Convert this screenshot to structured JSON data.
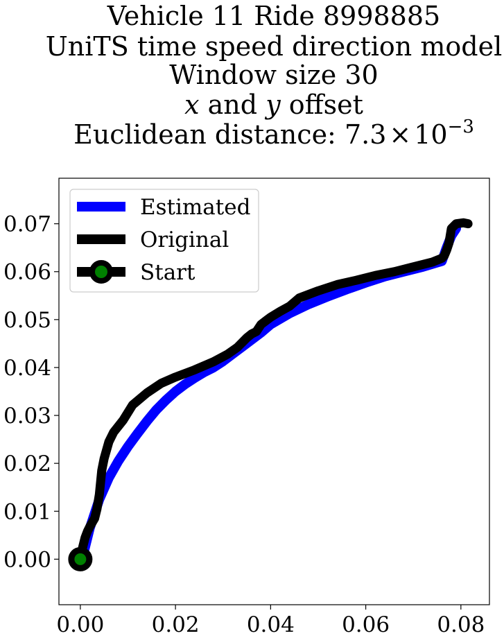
{
  "chart_data": {
    "type": "line",
    "title_lines": [
      "Vehicle 11 Ride 8998885",
      "UniTS time speed direction model",
      "Window size 30"
    ],
    "title_offset": {
      "x": "x",
      "and": "and",
      "y": "y",
      "rest": "offset"
    },
    "title_distance": {
      "prefix": "Euclidean distance: ",
      "mantissa": "7.3",
      "times": "×",
      "base": "10",
      "exponent": "−3"
    },
    "xlabel": "",
    "ylabel": "",
    "xlim": [
      -0.0045,
      0.086
    ],
    "ylim": [
      -0.0095,
      0.0795
    ],
    "xticks": [
      0.0,
      0.02,
      0.04,
      0.06,
      0.08
    ],
    "xtick_labels": [
      "0.00",
      "0.02",
      "0.04",
      "0.06",
      "0.08"
    ],
    "yticks": [
      0.0,
      0.01,
      0.02,
      0.03,
      0.04,
      0.05,
      0.06,
      0.07
    ],
    "ytick_labels": [
      "0.00",
      "0.01",
      "0.02",
      "0.03",
      "0.04",
      "0.05",
      "0.06",
      "0.07"
    ],
    "grid": false,
    "legend_position": "top-left",
    "legend": [
      "Estimated",
      "Original",
      "Start"
    ],
    "colors": {
      "estimated": "#0000ff",
      "original": "#000000",
      "start_fill": "#008000",
      "start_edge": "#000000"
    },
    "series": [
      {
        "name": "Estimated",
        "x": [
          0.0005,
          0.002,
          0.004,
          0.006,
          0.008,
          0.01,
          0.012,
          0.014,
          0.016,
          0.018,
          0.02,
          0.022,
          0.024,
          0.026,
          0.028,
          0.03,
          0.032,
          0.034,
          0.036,
          0.038,
          0.04,
          0.044,
          0.048,
          0.052,
          0.056,
          0.06,
          0.064,
          0.068,
          0.072,
          0.076,
          0.077,
          0.078,
          0.079
        ],
        "y": [
          0.0005,
          0.0065,
          0.0125,
          0.017,
          0.0205,
          0.0235,
          0.0262,
          0.0288,
          0.0312,
          0.0332,
          0.035,
          0.0365,
          0.0378,
          0.039,
          0.04,
          0.0413,
          0.0428,
          0.0443,
          0.0458,
          0.0473,
          0.049,
          0.0513,
          0.0532,
          0.0548,
          0.0563,
          0.0577,
          0.059,
          0.06,
          0.061,
          0.0622,
          0.065,
          0.0675,
          0.069
        ]
      },
      {
        "name": "Original",
        "x": [
          0.0,
          0.0005,
          0.001,
          0.0015,
          0.002,
          0.003,
          0.0035,
          0.004,
          0.0045,
          0.005,
          0.006,
          0.007,
          0.009,
          0.011,
          0.014,
          0.017,
          0.02,
          0.024,
          0.028,
          0.031,
          0.033,
          0.035,
          0.036,
          0.037,
          0.038,
          0.04,
          0.042,
          0.044,
          0.046,
          0.05,
          0.054,
          0.058,
          0.062,
          0.066,
          0.07,
          0.074,
          0.076,
          0.0765,
          0.077,
          0.0775,
          0.078,
          0.079,
          0.0805,
          0.0815
        ],
        "y": [
          0.0,
          0.0025,
          0.0045,
          0.0058,
          0.0068,
          0.0085,
          0.0105,
          0.0135,
          0.0185,
          0.021,
          0.0245,
          0.0265,
          0.029,
          0.0322,
          0.0347,
          0.0367,
          0.038,
          0.0395,
          0.0412,
          0.0428,
          0.0442,
          0.0462,
          0.047,
          0.0475,
          0.049,
          0.0505,
          0.0517,
          0.0528,
          0.0545,
          0.056,
          0.0573,
          0.0582,
          0.0592,
          0.06,
          0.061,
          0.062,
          0.0628,
          0.0633,
          0.0645,
          0.066,
          0.069,
          0.07,
          0.0702,
          0.07
        ]
      }
    ],
    "start_point": {
      "name": "Start",
      "x": 0.0,
      "y": 0.0
    }
  }
}
